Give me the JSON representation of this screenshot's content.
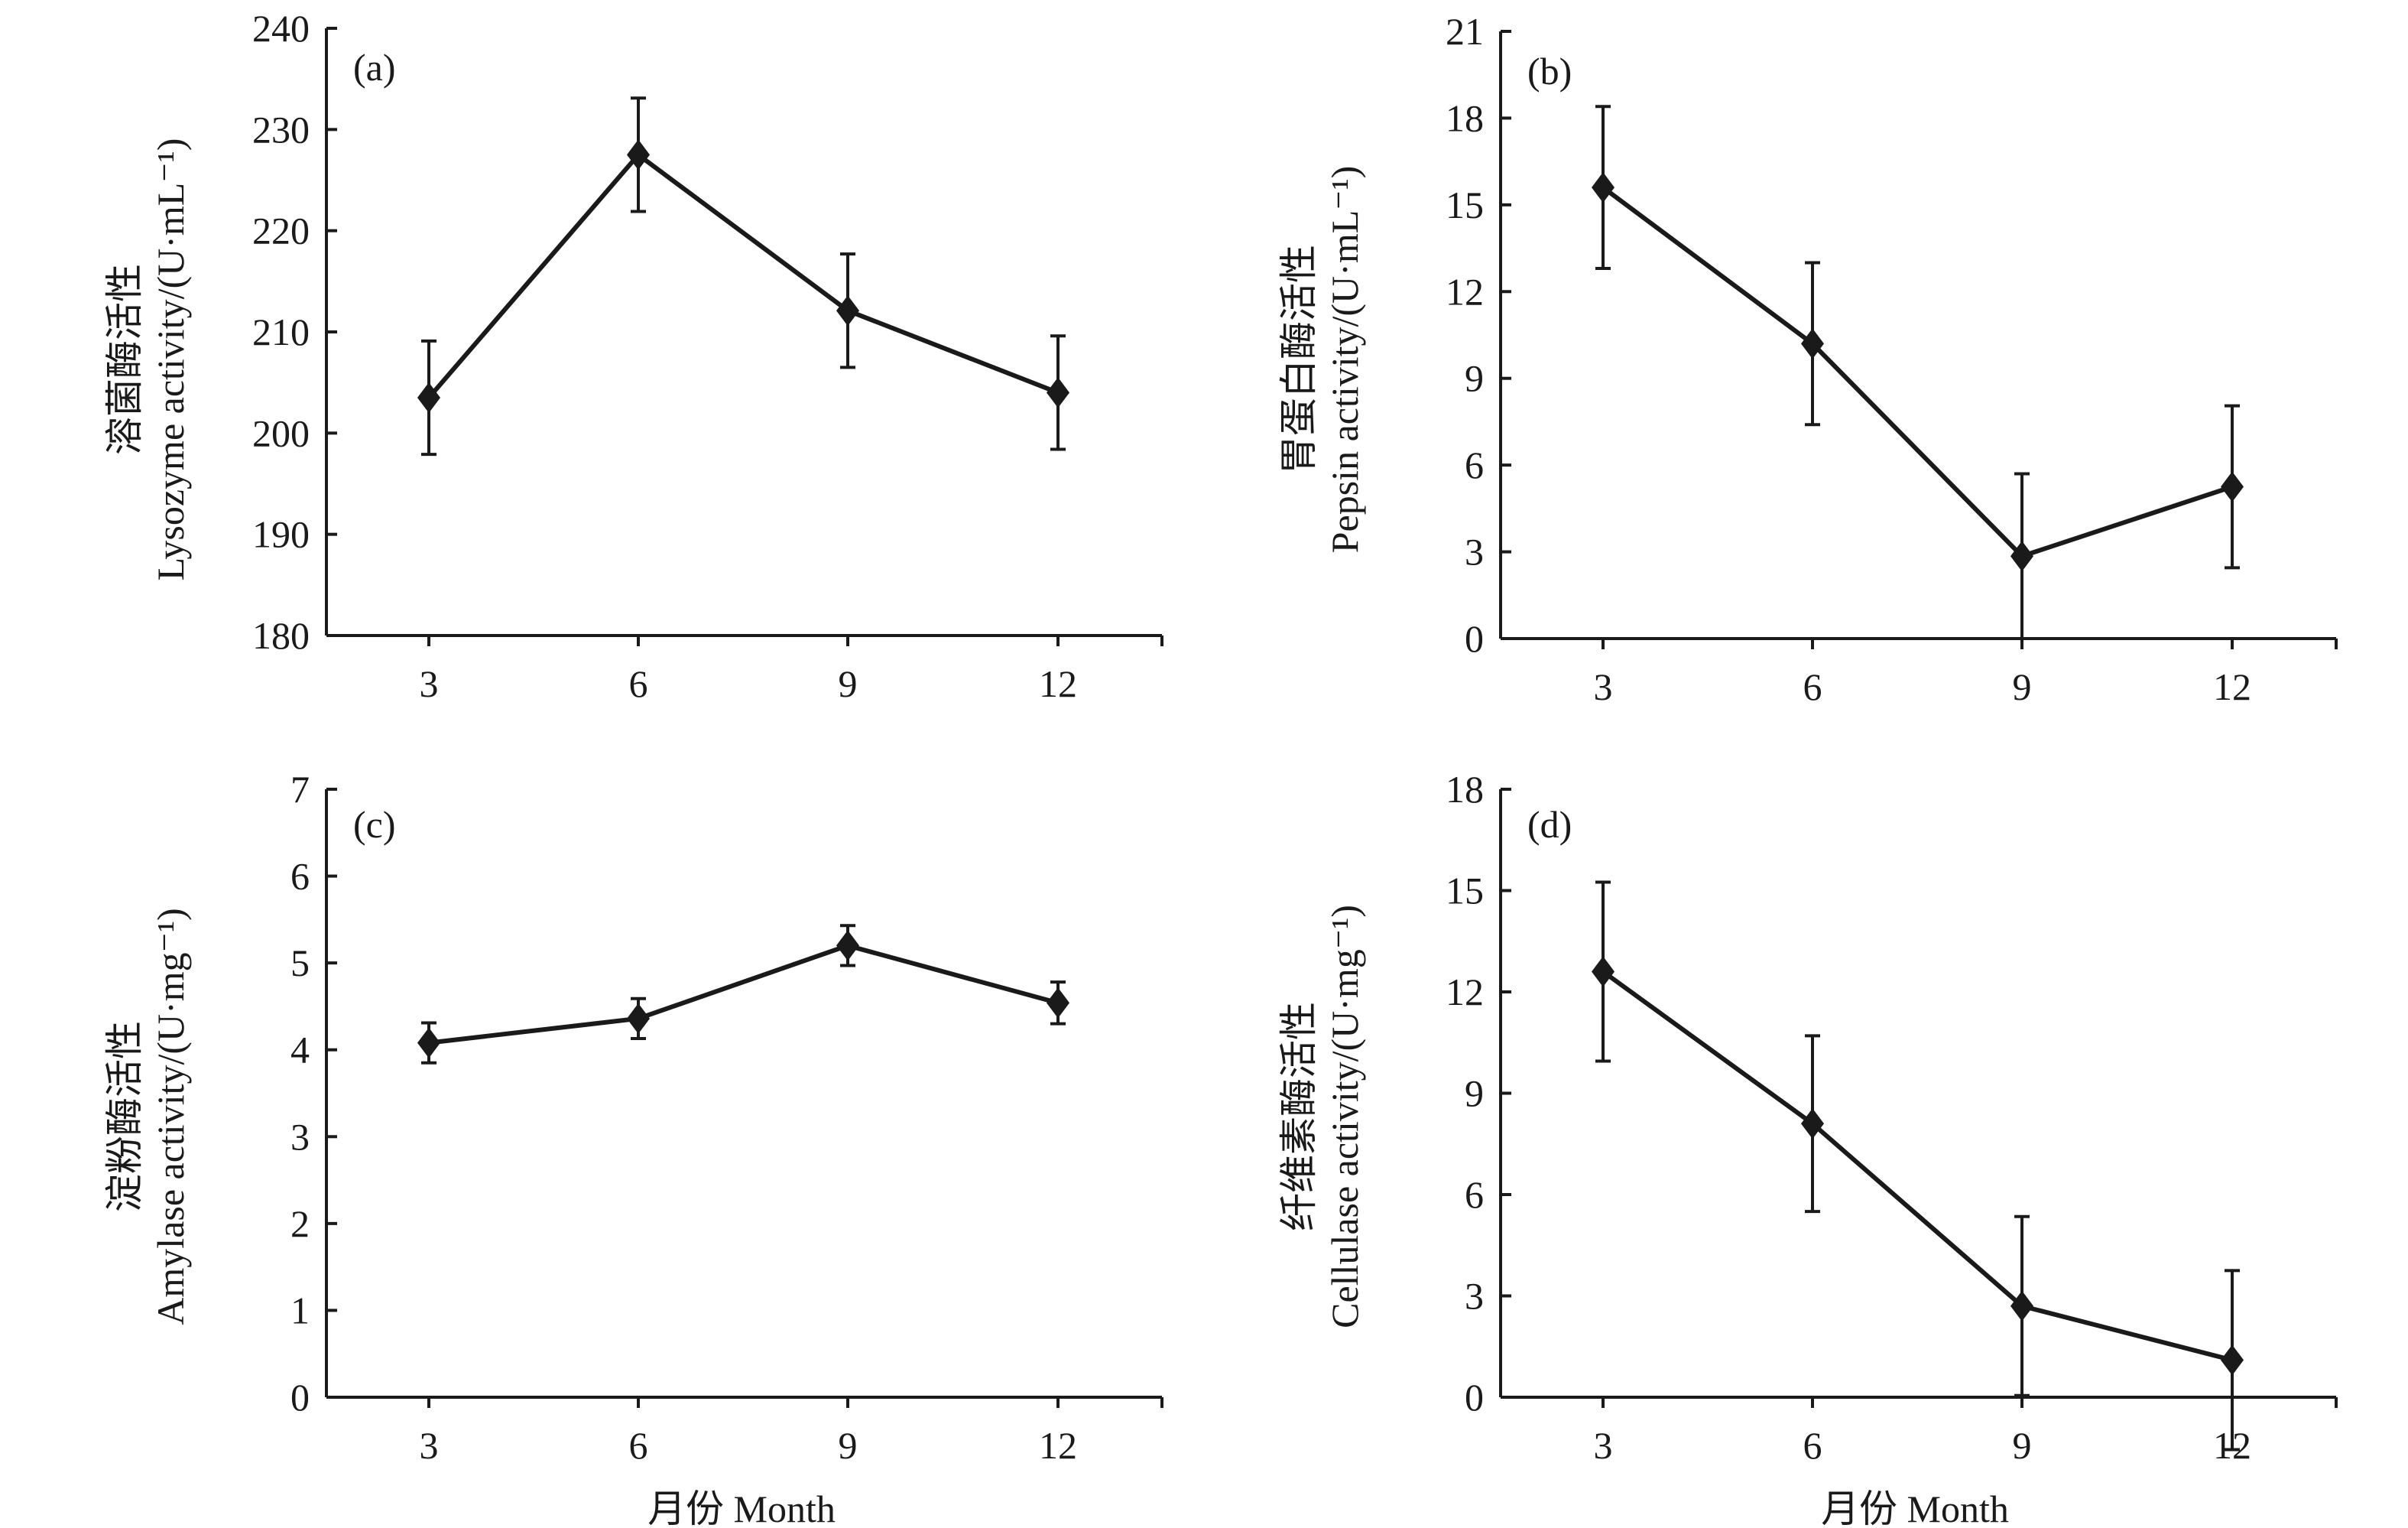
{
  "figure": {
    "x_title": "月份 Month"
  },
  "chart_data": [
    {
      "type": "line",
      "panel": "(a)",
      "ylabel_cn": "溶菌酶活性",
      "ylabel_en": "Lysozyme activity/(U·mL⁻¹)",
      "xlabel": "",
      "x": [
        3,
        6,
        9,
        12
      ],
      "x_tick_labels": [
        "3",
        "6",
        "9",
        "12"
      ],
      "ylim": [
        180,
        240
      ],
      "y_ticks": [
        180,
        190,
        200,
        210,
        220,
        230,
        240
      ],
      "series": [
        {
          "name": "Lysozyme",
          "values": [
            203.5,
            227.5,
            212.1,
            204.0
          ],
          "error": [
            5.6,
            5.6,
            5.6,
            5.6
          ]
        }
      ],
      "marker": "diamond",
      "grid": false
    },
    {
      "type": "line",
      "panel": "(b)",
      "ylabel_cn": "胃蛋白酶活性",
      "ylabel_en": "Pepsin activity/(U·mL⁻¹)",
      "xlabel": "",
      "x": [
        3,
        6,
        9,
        12
      ],
      "x_tick_labels": [
        "3",
        "6",
        "9",
        "12"
      ],
      "ylim": [
        0,
        21
      ],
      "y_ticks": [
        0,
        3,
        6,
        9,
        12,
        15,
        18,
        21
      ],
      "series": [
        {
          "name": "Pepsin",
          "values": [
            15.6,
            10.2,
            2.85,
            5.25
          ],
          "error": [
            2.8,
            2.8,
            2.85,
            2.8
          ]
        }
      ],
      "marker": "diamond",
      "grid": false
    },
    {
      "type": "line",
      "panel": "(c)",
      "ylabel_cn": "淀粉酶活性",
      "ylabel_en": "Amylase activity/(U·mg⁻¹)",
      "xlabel": "月份 Month",
      "x": [
        3,
        6,
        9,
        12
      ],
      "x_tick_labels": [
        "3",
        "6",
        "9",
        "12"
      ],
      "ylim": [
        0,
        7
      ],
      "y_ticks": [
        0,
        1,
        2,
        3,
        4,
        5,
        6,
        7
      ],
      "series": [
        {
          "name": "Amylase",
          "values": [
            4.08,
            4.36,
            5.2,
            4.54
          ],
          "error": [
            0.23,
            0.23,
            0.23,
            0.24
          ]
        }
      ],
      "marker": "diamond",
      "grid": false
    },
    {
      "type": "line",
      "panel": "(d)",
      "ylabel_cn": "纤维素酶活性",
      "ylabel_en": "Cellulase activity/(U·mg⁻¹)",
      "xlabel": "月份 Month",
      "x": [
        3,
        6,
        9,
        12
      ],
      "x_tick_labels": [
        "3",
        "6",
        "9",
        "12"
      ],
      "ylim": [
        0,
        18
      ],
      "y_ticks": [
        0,
        3,
        6,
        9,
        12,
        15,
        18
      ],
      "series": [
        {
          "name": "Cellulase",
          "values": [
            12.6,
            8.1,
            2.7,
            1.1
          ],
          "error": [
            2.65,
            2.6,
            2.65,
            2.65
          ]
        }
      ],
      "marker": "diamond",
      "grid": false
    }
  ]
}
